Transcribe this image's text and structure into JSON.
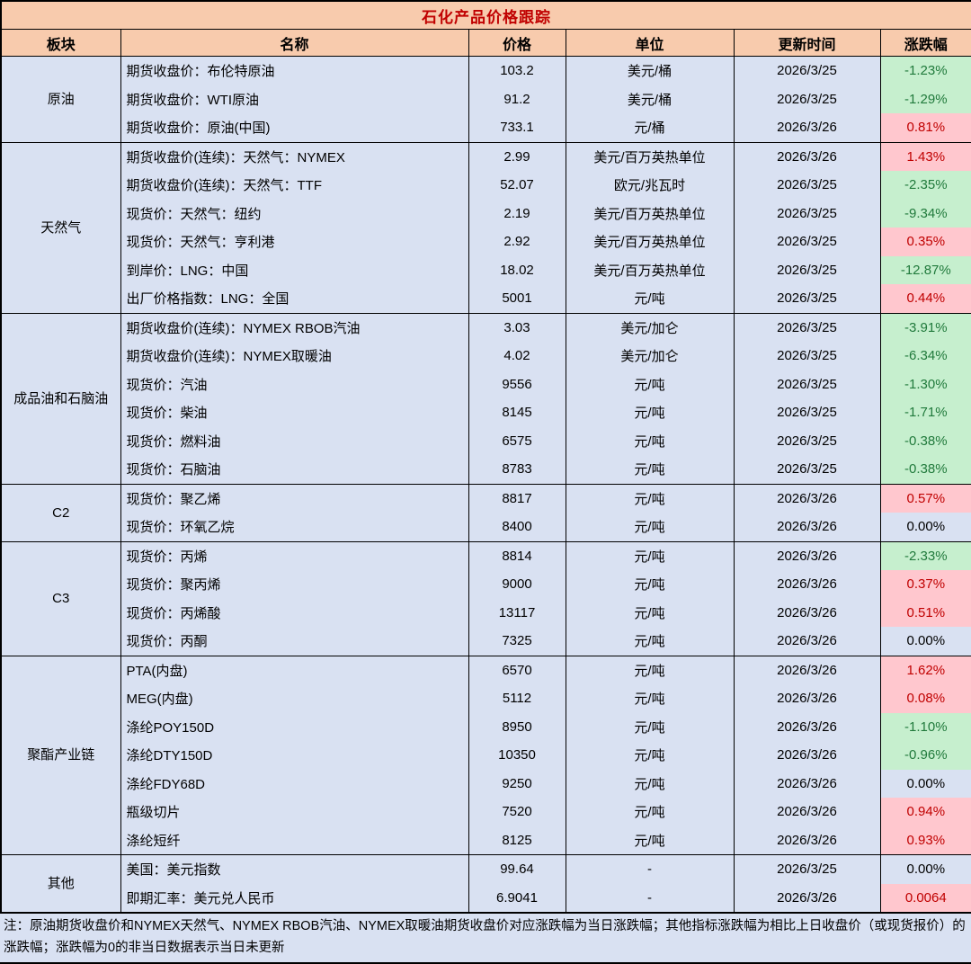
{
  "colors": {
    "header_bg": "#F8CBAD",
    "row_bg": "#D9E1F2",
    "title_text": "#C00000",
    "up_bg": "#FFC7CE",
    "up_text": "#C00000",
    "down_bg": "#C6EFCE",
    "down_text": "#217A3C",
    "border": "#000000"
  },
  "chart_data": {
    "type": "table",
    "title": "石化产品价格跟踪",
    "columns": [
      "板块",
      "名称",
      "价格",
      "单位",
      "更新时间",
      "涨跌幅"
    ],
    "sections": [
      {
        "sector": "原油",
        "rows": [
          {
            "name": "期货收盘价：布伦特原油",
            "price": "103.2",
            "unit": "美元/桶",
            "date": "2026/3/25",
            "change": "-1.23%",
            "dir": "down"
          },
          {
            "name": "期货收盘价：WTI原油",
            "price": "91.2",
            "unit": "美元/桶",
            "date": "2026/3/25",
            "change": "-1.29%",
            "dir": "down"
          },
          {
            "name": "期货收盘价：原油(中国)",
            "price": "733.1",
            "unit": "元/桶",
            "date": "2026/3/26",
            "change": "0.81%",
            "dir": "up"
          }
        ]
      },
      {
        "sector": "天然气",
        "rows": [
          {
            "name": "期货收盘价(连续)：天然气：NYMEX",
            "price": "2.99",
            "unit": "美元/百万英热单位",
            "date": "2026/3/26",
            "change": "1.43%",
            "dir": "up"
          },
          {
            "name": "期货收盘价(连续)：天然气：TTF",
            "price": "52.07",
            "unit": "欧元/兆瓦时",
            "date": "2026/3/25",
            "change": "-2.35%",
            "dir": "down"
          },
          {
            "name": "现货价：天然气：纽约",
            "price": "2.19",
            "unit": "美元/百万英热单位",
            "date": "2026/3/25",
            "change": "-9.34%",
            "dir": "down"
          },
          {
            "name": "现货价：天然气：亨利港",
            "price": "2.92",
            "unit": "美元/百万英热单位",
            "date": "2026/3/25",
            "change": "0.35%",
            "dir": "up"
          },
          {
            "name": "到岸价：LNG：中国",
            "price": "18.02",
            "unit": "美元/百万英热单位",
            "date": "2026/3/25",
            "change": "-12.87%",
            "dir": "down"
          },
          {
            "name": "出厂价格指数：LNG：全国",
            "price": "5001",
            "unit": "元/吨",
            "date": "2026/3/25",
            "change": "0.44%",
            "dir": "up"
          }
        ]
      },
      {
        "sector": "成品油和石脑油",
        "rows": [
          {
            "name": "期货收盘价(连续)：NYMEX RBOB汽油",
            "price": "3.03",
            "unit": "美元/加仑",
            "date": "2026/3/25",
            "change": "-3.91%",
            "dir": "down"
          },
          {
            "name": "期货收盘价(连续)：NYMEX取暖油",
            "price": "4.02",
            "unit": "美元/加仑",
            "date": "2026/3/25",
            "change": "-6.34%",
            "dir": "down"
          },
          {
            "name": "现货价：汽油",
            "price": "9556",
            "unit": "元/吨",
            "date": "2026/3/25",
            "change": "-1.30%",
            "dir": "down"
          },
          {
            "name": "现货价：柴油",
            "price": "8145",
            "unit": "元/吨",
            "date": "2026/3/25",
            "change": "-1.71%",
            "dir": "down"
          },
          {
            "name": "现货价：燃料油",
            "price": "6575",
            "unit": "元/吨",
            "date": "2026/3/25",
            "change": "-0.38%",
            "dir": "down"
          },
          {
            "name": "现货价：石脑油",
            "price": "8783",
            "unit": "元/吨",
            "date": "2026/3/25",
            "change": "-0.38%",
            "dir": "down"
          }
        ]
      },
      {
        "sector": "C2",
        "rows": [
          {
            "name": "现货价：聚乙烯",
            "price": "8817",
            "unit": "元/吨",
            "date": "2026/3/26",
            "change": "0.57%",
            "dir": "up"
          },
          {
            "name": "现货价：环氧乙烷",
            "price": "8400",
            "unit": "元/吨",
            "date": "2026/3/26",
            "change": "0.00%",
            "dir": "flat"
          }
        ]
      },
      {
        "sector": "C3",
        "rows": [
          {
            "name": "现货价：丙烯",
            "price": "8814",
            "unit": "元/吨",
            "date": "2026/3/26",
            "change": "-2.33%",
            "dir": "down"
          },
          {
            "name": "现货价：聚丙烯",
            "price": "9000",
            "unit": "元/吨",
            "date": "2026/3/26",
            "change": "0.37%",
            "dir": "up"
          },
          {
            "name": "现货价：丙烯酸",
            "price": "13117",
            "unit": "元/吨",
            "date": "2026/3/26",
            "change": "0.51%",
            "dir": "up"
          },
          {
            "name": "现货价：丙酮",
            "price": "7325",
            "unit": "元/吨",
            "date": "2026/3/26",
            "change": "0.00%",
            "dir": "flat"
          }
        ]
      },
      {
        "sector": "聚酯产业链",
        "rows": [
          {
            "name": "PTA(内盘)",
            "price": "6570",
            "unit": "元/吨",
            "date": "2026/3/26",
            "change": "1.62%",
            "dir": "up"
          },
          {
            "name": "MEG(内盘)",
            "price": "5112",
            "unit": "元/吨",
            "date": "2026/3/26",
            "change": "0.08%",
            "dir": "up"
          },
          {
            "name": "涤纶POY150D",
            "price": "8950",
            "unit": "元/吨",
            "date": "2026/3/26",
            "change": "-1.10%",
            "dir": "down"
          },
          {
            "name": "涤纶DTY150D",
            "price": "10350",
            "unit": "元/吨",
            "date": "2026/3/26",
            "change": "-0.96%",
            "dir": "down"
          },
          {
            "name": "涤纶FDY68D",
            "price": "9250",
            "unit": "元/吨",
            "date": "2026/3/26",
            "change": "0.00%",
            "dir": "flat"
          },
          {
            "name": "瓶级切片",
            "price": "7520",
            "unit": "元/吨",
            "date": "2026/3/26",
            "change": "0.94%",
            "dir": "up"
          },
          {
            "name": "涤纶短纤",
            "price": "8125",
            "unit": "元/吨",
            "date": "2026/3/26",
            "change": "0.93%",
            "dir": "up"
          }
        ]
      },
      {
        "sector": "其他",
        "rows": [
          {
            "name": "美国：美元指数",
            "price": "99.64",
            "unit": "-",
            "date": "2026/3/25",
            "change": "0.00%",
            "dir": "flat"
          },
          {
            "name": "即期汇率：美元兑人民币",
            "price": "6.9041",
            "unit": "-",
            "date": "2026/3/26",
            "change": "0.0064",
            "dir": "up"
          }
        ]
      }
    ],
    "note": "注：原油期货收盘价和NYMEX天然气、NYMEX RBOB汽油、NYMEX取暖油期货收盘价对应涨跌幅为当日涨跌幅；其他指标涨跌幅为相比上日收盘价（或现货报价）的涨跌幅；涨跌幅为0的非当日数据表示当日未更新"
  }
}
